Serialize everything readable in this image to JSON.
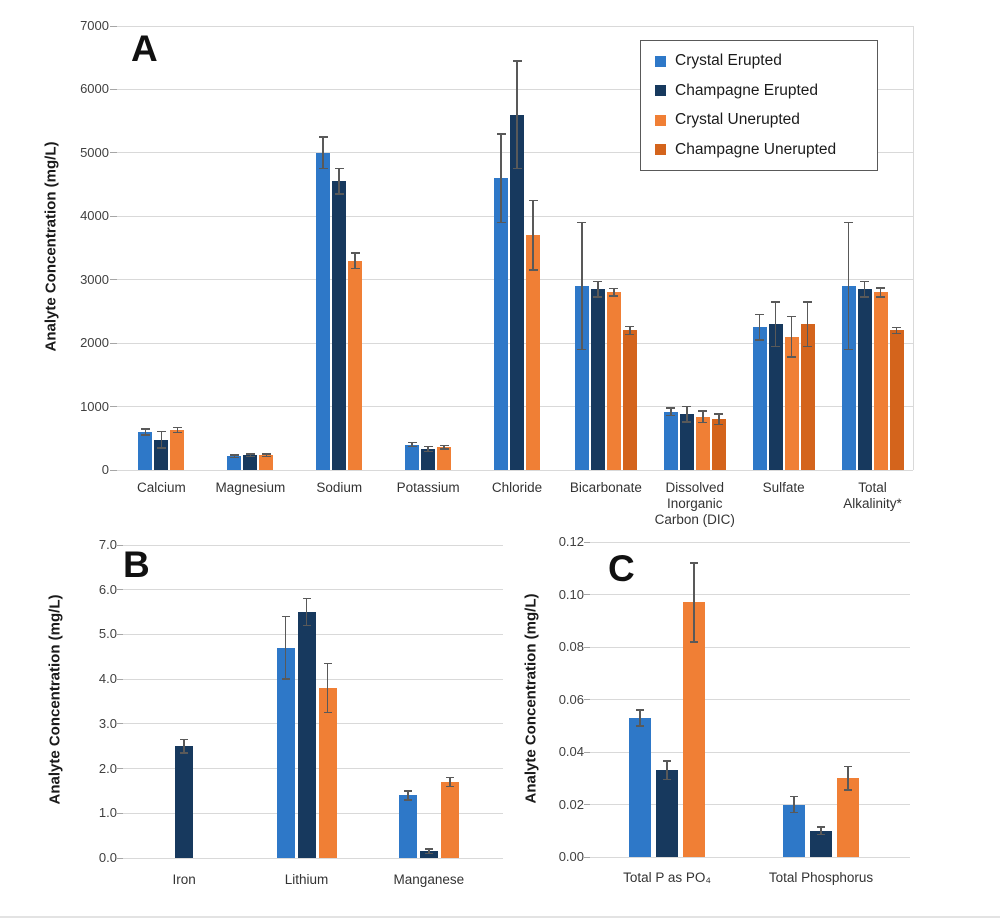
{
  "figure": {
    "background": "#ffffff",
    "colors": {
      "grid": "#d9d9d9",
      "error_bar": "#595959",
      "tick_text": "#404040",
      "divider": "#e3e3e3"
    }
  },
  "legend": {
    "position": "top-right-of-panel-A",
    "entries": [
      {
        "label": "Crystal Erupted",
        "color": "#2E78C8"
      },
      {
        "label": "Champagne Erupted",
        "color": "#17395E"
      },
      {
        "label": "Crystal Unerupted",
        "color": "#F07F35"
      },
      {
        "label": "Champagne Unerupted",
        "color": "#D4641C"
      }
    ]
  },
  "chart_data": [
    {
      "panel": "A",
      "type": "bar",
      "ylabel": "Analyte Concentration (mg/L)",
      "ylim": [
        0,
        7000
      ],
      "ytick_step": 1000,
      "ytick_labels": [
        "0",
        "1000",
        "2000",
        "3000",
        "4000",
        "5000",
        "6000",
        "7000"
      ],
      "grid": true,
      "categories": [
        "Calcium",
        "Magnesium",
        "Sodium",
        "Potassium",
        "Chloride",
        "Bicarbonate",
        "Dissolved\nInorganic\nCarbon (DIC)",
        "Sulfate",
        "Total\nAlkalinity*"
      ],
      "series": [
        {
          "name": "Crystal Erupted",
          "color": "#2E78C8",
          "values": [
            600,
            220,
            5000,
            400,
            4600,
            2900,
            920,
            2250,
            2900
          ],
          "errors": [
            50,
            20,
            250,
            30,
            700,
            1000,
            60,
            200,
            1000
          ]
        },
        {
          "name": "Champagne Erupted",
          "color": "#17395E",
          "values": [
            480,
            230,
            4550,
            330,
            5600,
            2850,
            880,
            2300,
            2850
          ],
          "errors": [
            130,
            20,
            200,
            40,
            850,
            120,
            120,
            350,
            120
          ]
        },
        {
          "name": "Crystal Unerupted",
          "color": "#F07F35",
          "values": [
            630,
            230,
            3300,
            360,
            3700,
            2800,
            840,
            2100,
            2800
          ],
          "errors": [
            40,
            20,
            120,
            30,
            550,
            60,
            90,
            320,
            70
          ]
        },
        {
          "name": "Champagne Unerupted",
          "color": "#D4641C",
          "values": [
            null,
            null,
            null,
            null,
            null,
            2200,
            800,
            2300,
            2200
          ],
          "errors": [
            null,
            null,
            null,
            null,
            null,
            60,
            80,
            350,
            50
          ]
        }
      ]
    },
    {
      "panel": "B",
      "type": "bar",
      "ylabel": "Analyte Concentration (mg/L)",
      "ylim": [
        0,
        7
      ],
      "ytick_step": 1,
      "ytick_labels": [
        "0.0",
        "1.0",
        "2.0",
        "3.0",
        "4.0",
        "5.0",
        "6.0",
        "7.0"
      ],
      "grid": true,
      "categories": [
        "Iron",
        "Lithium",
        "Manganese"
      ],
      "series": [
        {
          "name": "Crystal Erupted",
          "color": "#2E78C8",
          "values": [
            null,
            4.7,
            1.4
          ],
          "errors": [
            null,
            0.7,
            0.1
          ]
        },
        {
          "name": "Champagne Erupted",
          "color": "#17395E",
          "values": [
            2.5,
            5.5,
            0.15
          ],
          "errors": [
            0.15,
            0.3,
            0.05
          ]
        },
        {
          "name": "Crystal Unerupted",
          "color": "#F07F35",
          "values": [
            null,
            3.8,
            1.7
          ],
          "errors": [
            null,
            0.55,
            0.1
          ]
        }
      ]
    },
    {
      "panel": "C",
      "type": "bar",
      "ylabel": "Analyte Concentration (mg/L)",
      "ylim": [
        0,
        0.12
      ],
      "ytick_step": 0.02,
      "ytick_labels": [
        "0.00",
        "0.02",
        "0.04",
        "0.06",
        "0.08",
        "0.10",
        "0.12"
      ],
      "grid": true,
      "categories": [
        "Total P as PO₄",
        "Total Phosphorus"
      ],
      "series": [
        {
          "name": "Crystal Erupted",
          "color": "#2E78C8",
          "values": [
            0.053,
            0.02
          ],
          "errors": [
            0.003,
            0.003
          ]
        },
        {
          "name": "Champagne Erupted",
          "color": "#17395E",
          "values": [
            0.033,
            0.01
          ],
          "errors": [
            0.0035,
            0.0015
          ]
        },
        {
          "name": "Crystal Unerupted",
          "color": "#F07F35",
          "values": [
            0.097,
            0.03
          ],
          "errors": [
            0.015,
            0.0045
          ]
        }
      ]
    }
  ]
}
